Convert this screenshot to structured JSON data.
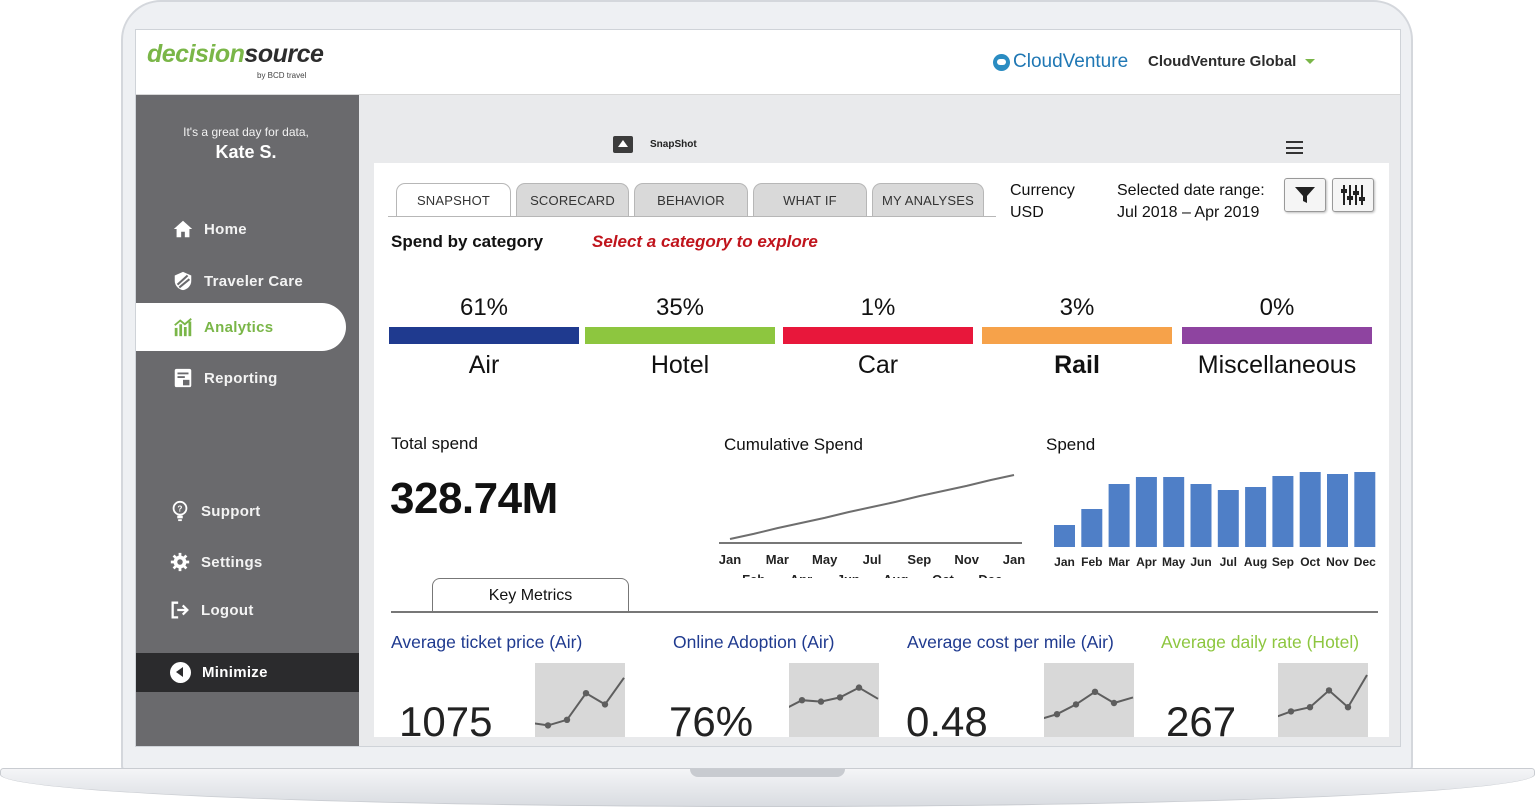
{
  "header": {
    "logo_part1": "decision",
    "logo_part2": "source",
    "logo_sub": "by BCD travel",
    "brand": "CloudVenture",
    "org": "CloudVenture Global"
  },
  "sidebar": {
    "greeting": "It's a great day for data,",
    "user": "Kate S.",
    "items": [
      {
        "label": "Home",
        "icon": "home-icon"
      },
      {
        "label": "Traveler Care",
        "icon": "shield-icon"
      },
      {
        "label": "Analytics",
        "icon": "analytics-icon",
        "active": true
      },
      {
        "label": "Reporting",
        "icon": "report-icon"
      },
      {
        "label": "Support",
        "icon": "lightbulb-icon"
      },
      {
        "label": "Settings",
        "icon": "gear-icon"
      },
      {
        "label": "Logout",
        "icon": "logout-icon"
      }
    ],
    "minimize": "Minimize"
  },
  "main": {
    "page_title": "SnapShot",
    "tabs": [
      "SNAPSHOT",
      "SCORECARD",
      "BEHAVIOR",
      "WHAT IF",
      "MY ANALYSES"
    ],
    "currency_label": "Currency",
    "currency_value": "USD",
    "date_label": "Selected date range:",
    "date_value": "Jul 2018 – Apr 2019",
    "spend_title": "Spend by category",
    "spend_hint": "Select a category to explore",
    "categories": [
      {
        "pct": "61%",
        "label": "Air",
        "color": "#1f3a8f"
      },
      {
        "pct": "35%",
        "label": "Hotel",
        "color": "#8dc63f"
      },
      {
        "pct": "1%",
        "label": "Car",
        "color": "#e8173b"
      },
      {
        "pct": "3%",
        "label": "Rail",
        "color": "#f6a24a"
      },
      {
        "pct": "0%",
        "label": "Miscellaneous",
        "color": "#8e44a0"
      }
    ],
    "total_spend_label": "Total spend",
    "total_spend_value": "328.74M",
    "cumulative_title": "Cumulative Spend",
    "spend_chart_title": "Spend",
    "key_metrics_tab": "Key Metrics",
    "metrics": [
      {
        "title": "Average ticket price (Air)",
        "value": "1075",
        "color": "#1f3a8f"
      },
      {
        "title": "Online Adoption (Air)",
        "value": "76%",
        "color": "#1f3a8f"
      },
      {
        "title": "Average cost per mile (Air)",
        "value": "0.48",
        "color": "#1f3a8f"
      },
      {
        "title": "Average daily rate (Hotel)",
        "value": "267",
        "color": "#8dc63f"
      }
    ]
  },
  "chart_data": [
    {
      "type": "line",
      "title": "Cumulative Spend",
      "x": [
        "Jan",
        "Feb",
        "Mar",
        "Apr",
        "May",
        "Jun",
        "Jul",
        "Aug",
        "Sep",
        "Oct",
        "Nov",
        "Dec",
        "Jan"
      ],
      "series": [
        {
          "values": [
            0,
            8,
            17,
            25,
            33,
            42,
            50,
            58,
            67,
            75,
            83,
            92,
            100
          ]
        }
      ]
    },
    {
      "type": "bar",
      "title": "Spend",
      "categories": [
        "Jan",
        "Feb",
        "Mar",
        "Apr",
        "May",
        "Jun",
        "Jul",
        "Aug",
        "Sep",
        "Oct",
        "Nov",
        "Dec"
      ],
      "values": [
        22,
        38,
        63,
        70,
        70,
        63,
        57,
        60,
        71,
        75,
        73,
        75
      ],
      "color": "#4f7fc7"
    },
    {
      "type": "line",
      "series": [
        {
          "values": [
            22,
            18,
            26,
            64,
            48,
            86
          ]
        }
      ]
    },
    {
      "type": "line",
      "series": [
        {
          "values": [
            40,
            54,
            52,
            58,
            72,
            56
          ]
        }
      ]
    },
    {
      "type": "line",
      "series": [
        {
          "values": [
            26,
            34,
            48,
            66,
            50,
            58
          ]
        }
      ]
    },
    {
      "type": "line",
      "series": [
        {
          "values": [
            28,
            38,
            44,
            68,
            44,
            90
          ]
        }
      ]
    }
  ]
}
